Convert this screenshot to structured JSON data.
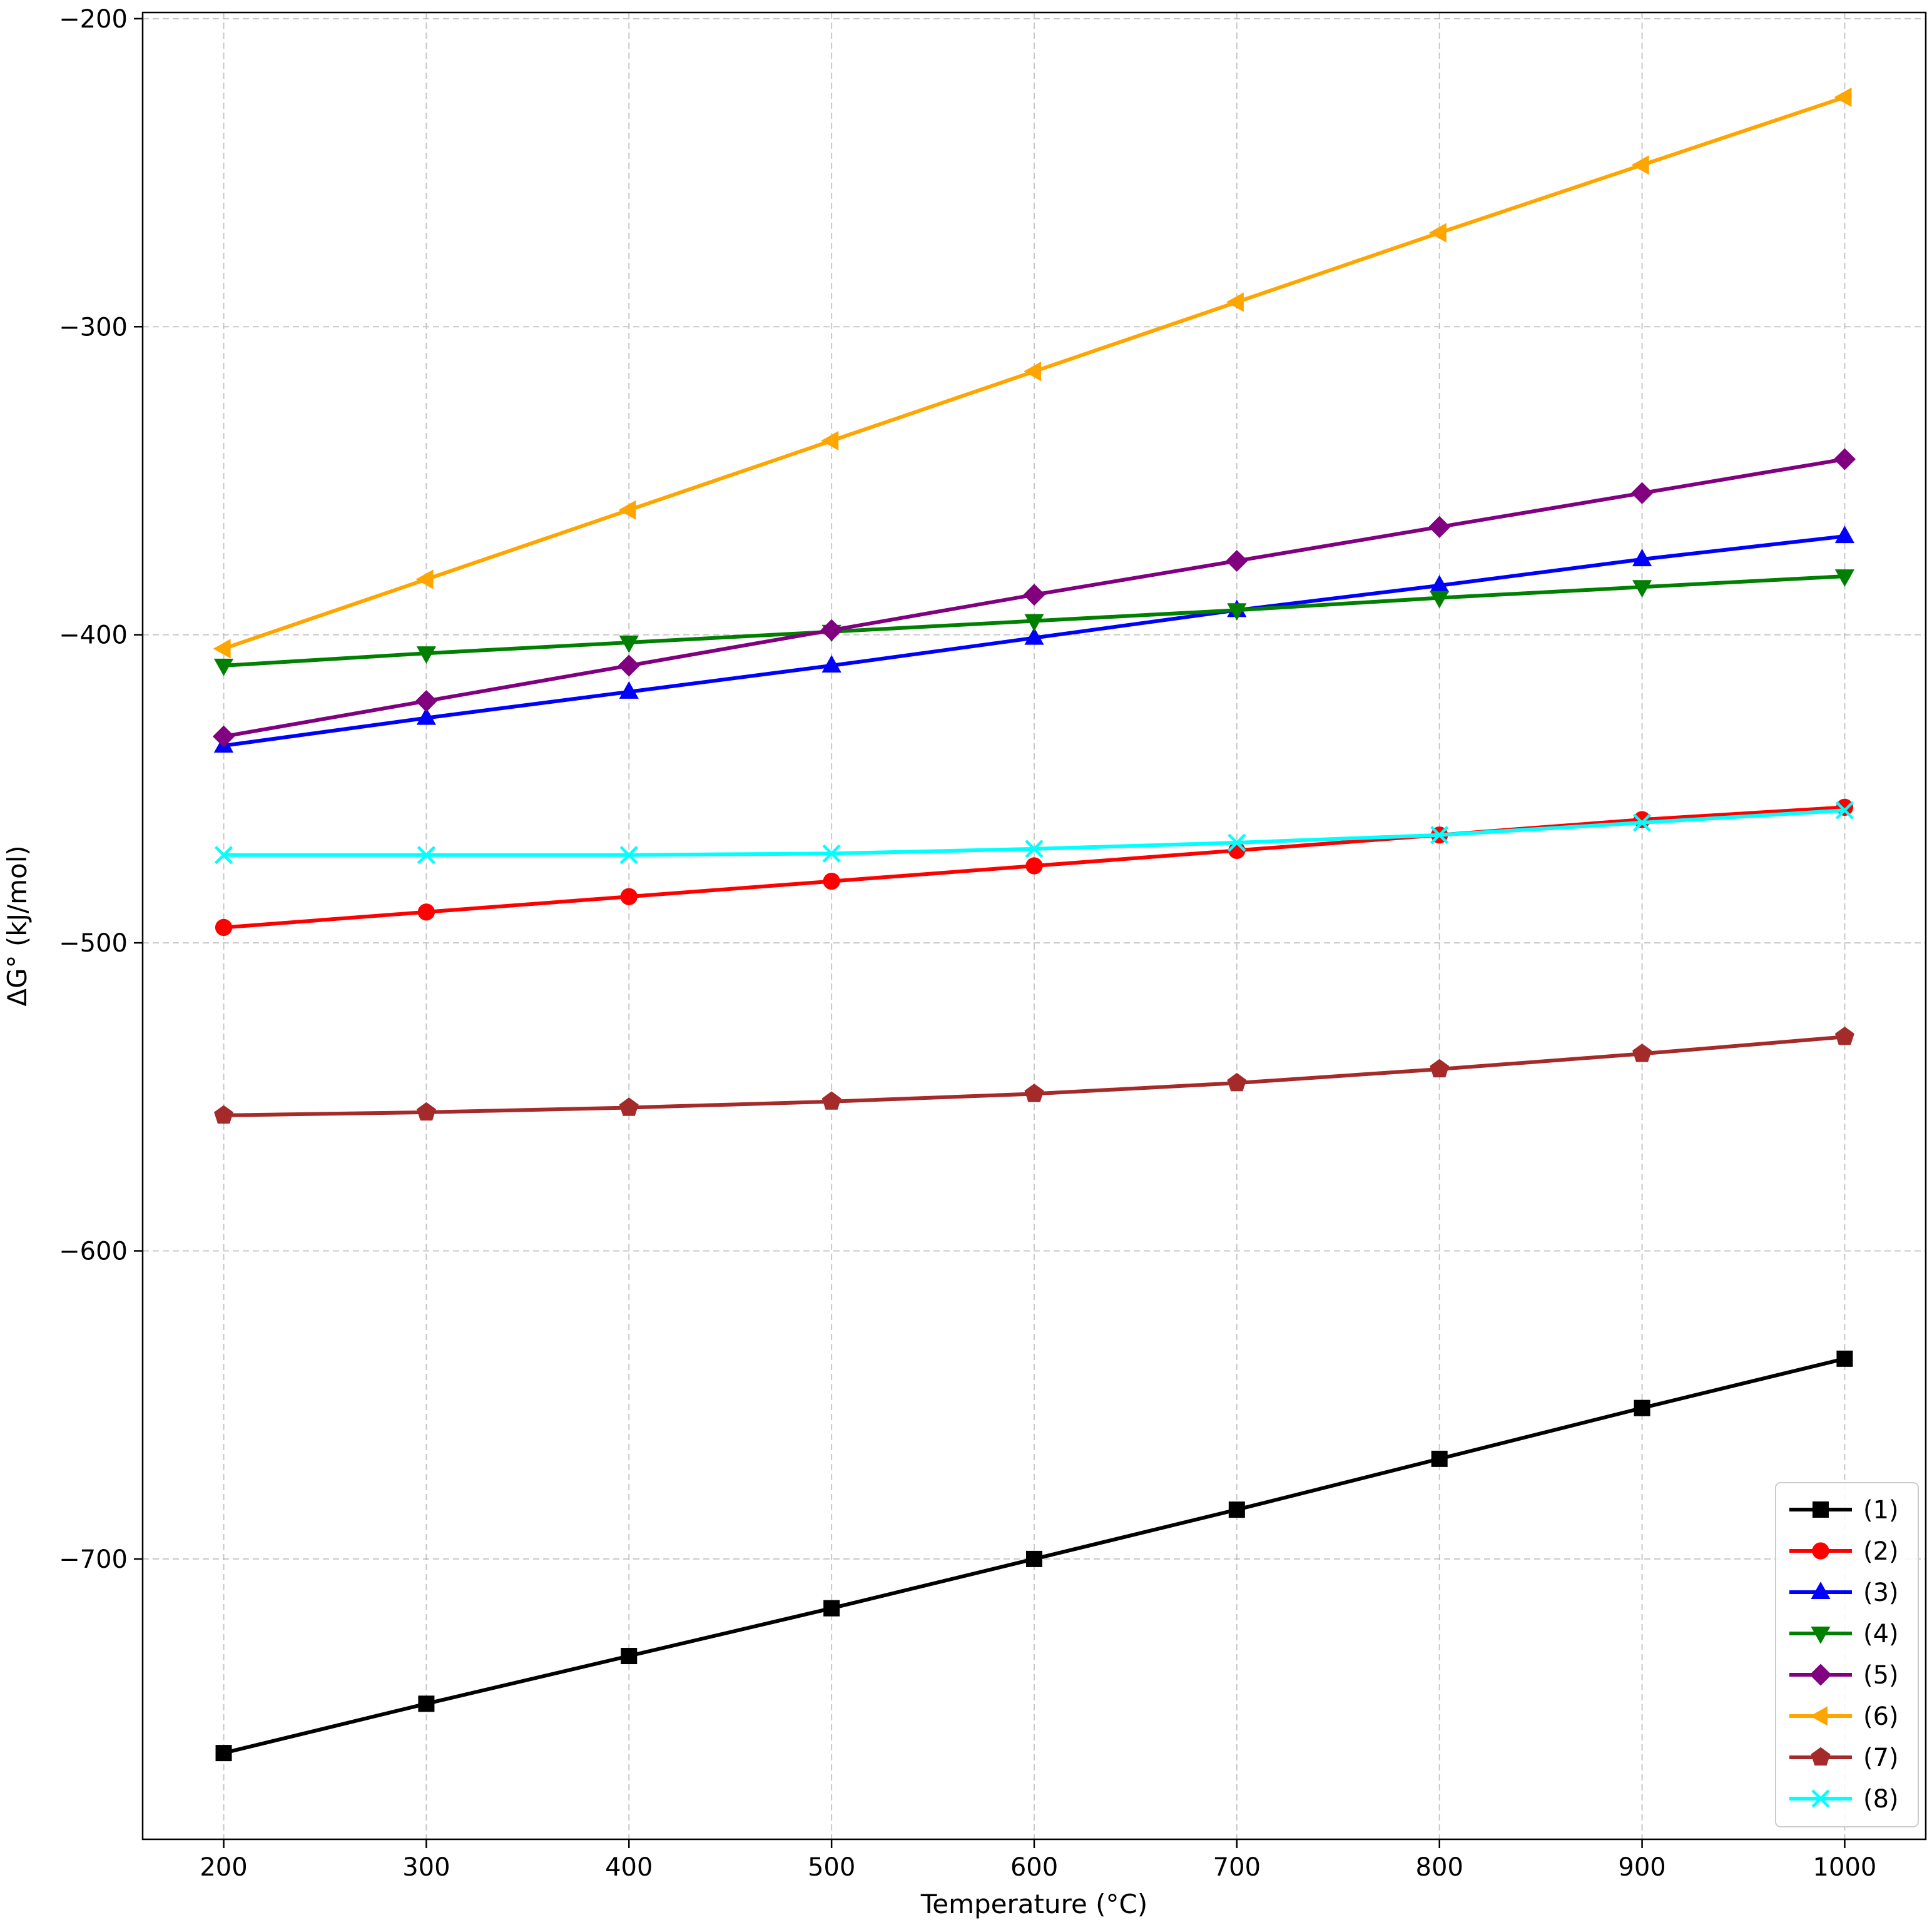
{
  "chart_data": {
    "type": "line",
    "title": "",
    "xlabel": "Temperature (°C)",
    "ylabel": "ΔG° (kJ/mol)",
    "xlim": [
      160,
      1040
    ],
    "ylim": [
      -791,
      -198
    ],
    "xticks": [
      200,
      300,
      400,
      500,
      600,
      700,
      800,
      900,
      1000
    ],
    "yticks": [
      -200,
      -300,
      -400,
      -500,
      -600,
      -700
    ],
    "xtick_labels": [
      "200",
      "300",
      "400",
      "500",
      "600",
      "700",
      "800",
      "900",
      "1000"
    ],
    "ytick_labels": [
      "−200",
      "−300",
      "−400",
      "−500",
      "−600",
      "−700"
    ],
    "grid": true,
    "legend_position": "lower right",
    "x": [
      200,
      300,
      400,
      500,
      600,
      700,
      800,
      900,
      1000
    ],
    "series": [
      {
        "name": "(1)",
        "color": "#000000",
        "marker": "square",
        "values": [
          -763,
          -747,
          -731.5,
          -716,
          -700,
          -684,
          -667.5,
          -651,
          -635
        ]
      },
      {
        "name": "(2)",
        "color": "#ff0000",
        "marker": "circle",
        "values": [
          -495,
          -490,
          -485,
          -480,
          -475,
          -470,
          -465,
          -460,
          -456
        ]
      },
      {
        "name": "(3)",
        "color": "#0000ff",
        "marker": "triangle-up",
        "values": [
          -436,
          -427,
          -418.5,
          -410,
          -401,
          -392,
          -384,
          -375.5,
          -368
        ]
      },
      {
        "name": "(4)",
        "color": "#008000",
        "marker": "triangle-down",
        "values": [
          -410,
          -406,
          -402.5,
          -399,
          -395.5,
          -392,
          -388,
          -384.5,
          -381
        ]
      },
      {
        "name": "(5)",
        "color": "#800080",
        "marker": "diamond",
        "values": [
          -433,
          -421.5,
          -410,
          -398.5,
          -387,
          -376,
          -365,
          -354,
          -343
        ]
      },
      {
        "name": "(6)",
        "color": "#ffa500",
        "marker": "triangle-left",
        "values": [
          -404.5,
          -382,
          -359.5,
          -337,
          -314.5,
          -292,
          -269.5,
          -247.5,
          -225.5
        ]
      },
      {
        "name": "(7)",
        "color": "#a52a2a",
        "marker": "pentagon",
        "values": [
          -556,
          -555,
          -553.5,
          -551.5,
          -549,
          -545.5,
          -541,
          -536,
          -530.5
        ]
      },
      {
        "name": "(8)",
        "color": "#00ffff",
        "marker": "x",
        "values": [
          -471.5,
          -471.5,
          -471.5,
          -471,
          -469.5,
          -467.5,
          -465,
          -461,
          -457
        ]
      }
    ]
  }
}
